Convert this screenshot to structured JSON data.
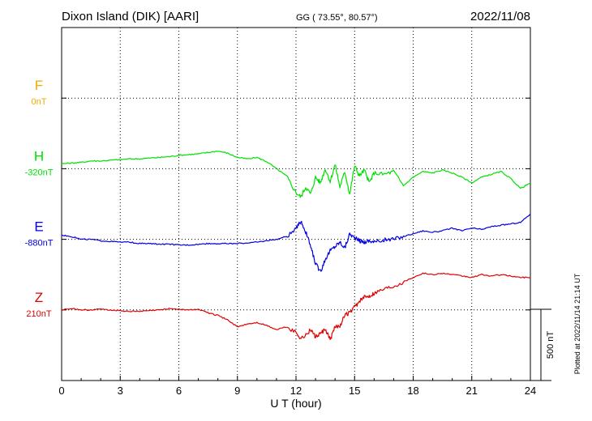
{
  "header": {
    "station": "Dixon Island (DIK)  [AARI]",
    "coords": "GG ( 73.55°,  80.57°)",
    "date": "2022/11/08"
  },
  "side_note": "Plotted at 2022/11/14 21:14 UT",
  "chart_data": {
    "type": "line",
    "xlabel": "U T (hour)",
    "xlim": [
      0,
      24
    ],
    "xticks": [
      "0",
      "3",
      "6",
      "9",
      "12",
      "15",
      "18",
      "21",
      "24"
    ],
    "ylim_nT_relative": [
      -500,
      2000
    ],
    "scale_bar": {
      "label": "500 nT",
      "value": 500
    },
    "grid": "dotted",
    "series": [
      {
        "name": "F",
        "baseline_label": "0nT",
        "color": "#f5a800",
        "baseline_offset": 1500,
        "x": [],
        "values": []
      },
      {
        "name": "H",
        "baseline_label": "-320nT",
        "color": "#00e000",
        "baseline_offset": 1000,
        "x": [
          0,
          0.5,
          1,
          1.5,
          2,
          2.5,
          3,
          3.5,
          4,
          4.5,
          5,
          5.5,
          6,
          6.5,
          7,
          7.5,
          8,
          8.5,
          9,
          9.5,
          10,
          10.5,
          11,
          11.5,
          12,
          12.25,
          12.5,
          12.75,
          13,
          13.25,
          13.5,
          13.75,
          14,
          14.25,
          14.5,
          14.75,
          15,
          15.25,
          15.5,
          15.75,
          16,
          16.5,
          17,
          17.5,
          18,
          18.5,
          19,
          19.5,
          20,
          20.5,
          21,
          21.5,
          22,
          22.5,
          23,
          23.5,
          24
        ],
        "values": [
          35,
          40,
          45,
          55,
          55,
          60,
          65,
          70,
          70,
          75,
          80,
          85,
          95,
          100,
          105,
          115,
          125,
          110,
          80,
          70,
          80,
          50,
          0,
          -50,
          -170,
          -200,
          -130,
          -180,
          -60,
          -100,
          0,
          -90,
          30,
          -130,
          -20,
          -180,
          20,
          -50,
          -10,
          -100,
          -30,
          -40,
          -20,
          -120,
          -60,
          -20,
          -30,
          -10,
          -30,
          -60,
          -100,
          -60,
          -40,
          -20,
          -70,
          -140,
          -100
        ],
        "units": "nT"
      },
      {
        "name": "E",
        "baseline_label": "-880nT",
        "color": "#0000e0",
        "baseline_offset": 500,
        "x": [
          0,
          0.5,
          1,
          1.5,
          2,
          2.5,
          3,
          3.5,
          4,
          4.5,
          5,
          5.5,
          6,
          6.5,
          7,
          7.5,
          8,
          8.5,
          9,
          9.5,
          10,
          10.5,
          11,
          11.5,
          12,
          12.25,
          12.5,
          12.75,
          13,
          13.25,
          13.5,
          13.75,
          14,
          14.25,
          14.5,
          14.75,
          15,
          15.25,
          15.5,
          15.75,
          16,
          16.5,
          17,
          17.5,
          18,
          18.5,
          19,
          19.5,
          20,
          20.5,
          21,
          21.5,
          22,
          22.5,
          23,
          23.5,
          24
        ],
        "values": [
          30,
          20,
          0,
          0,
          -10,
          -15,
          -20,
          -20,
          -30,
          -30,
          -35,
          -35,
          -40,
          -40,
          -35,
          -30,
          -30,
          -30,
          -30,
          -25,
          -20,
          -10,
          0,
          20,
          70,
          130,
          50,
          -50,
          -170,
          -230,
          -140,
          -80,
          -50,
          -20,
          -60,
          40,
          10,
          -10,
          -20,
          -10,
          -20,
          -5,
          0,
          20,
          40,
          60,
          50,
          60,
          80,
          60,
          80,
          70,
          90,
          100,
          110,
          120,
          180
        ],
        "units": "nT"
      },
      {
        "name": "Z",
        "baseline_label": "210nT",
        "color": "#e00000",
        "baseline_offset": 0,
        "x": [
          0,
          0.5,
          1,
          1.5,
          2,
          2.5,
          3,
          3.5,
          4,
          4.5,
          5,
          5.5,
          6,
          6.5,
          7,
          7.5,
          8,
          8.5,
          9,
          9.5,
          10,
          10.5,
          11,
          11.5,
          12,
          12.25,
          12.5,
          12.75,
          13,
          13.25,
          13.5,
          13.75,
          14,
          14.25,
          14.5,
          14.75,
          15,
          15.25,
          15.5,
          15.75,
          16,
          16.5,
          17,
          17.5,
          18,
          18.5,
          19,
          19.5,
          20,
          20.5,
          21,
          21.5,
          22,
          22.5,
          23,
          23.5,
          24
        ],
        "values": [
          0,
          10,
          0,
          0,
          5,
          0,
          -5,
          -10,
          -10,
          -5,
          0,
          10,
          5,
          0,
          5,
          -20,
          -40,
          -70,
          -120,
          -100,
          -90,
          -110,
          -140,
          -120,
          -160,
          -200,
          -180,
          -140,
          -190,
          -170,
          -140,
          -210,
          -120,
          -110,
          -40,
          -20,
          20,
          60,
          90,
          100,
          120,
          150,
          170,
          200,
          230,
          260,
          250,
          260,
          250,
          240,
          230,
          250,
          240,
          250,
          240,
          230,
          230
        ],
        "units": "nT"
      }
    ]
  }
}
